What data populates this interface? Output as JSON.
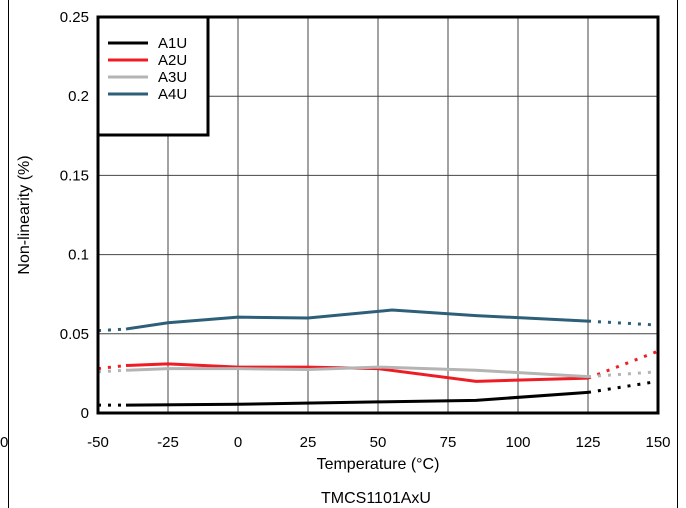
{
  "chart_data": {
    "type": "line",
    "title": "",
    "caption": "TMCS1101AxU",
    "xlabel": "Temperature (°C)",
    "ylabel": "Non-linearity (%)",
    "xlim": [
      -50,
      150
    ],
    "ylim": [
      0,
      0.25
    ],
    "x_ticks": [
      -50,
      -25,
      0,
      25,
      50,
      75,
      100,
      125,
      150
    ],
    "y_ticks": [
      0,
      0.05,
      0.1,
      0.15,
      0.2,
      0.25
    ],
    "x_tick_labels": [
      "-50",
      "-25",
      "0",
      "25",
      "50",
      "75",
      "100",
      "125",
      "150"
    ],
    "y_tick_labels": [
      "0",
      "0.05",
      "0.1",
      "0.15",
      "0.2",
      "0.25"
    ],
    "stray_label": "0",
    "grid": true,
    "legend_position": "top-left",
    "series": [
      {
        "name": "A1U",
        "color": "#000000",
        "solid": {
          "x": [
            -40,
            0,
            50,
            85,
            125
          ],
          "y": [
            0.005,
            0.0055,
            0.007,
            0.008,
            0.013
          ]
        },
        "dotted_start": {
          "x": [
            -50,
            -40
          ],
          "y": [
            0.005,
            0.005
          ]
        },
        "dotted_end": {
          "x": [
            125,
            150
          ],
          "y": [
            0.013,
            0.02
          ]
        }
      },
      {
        "name": "A2U",
        "color": "#ee1c25",
        "solid": {
          "x": [
            -40,
            -25,
            0,
            25,
            50,
            85,
            125
          ],
          "y": [
            0.03,
            0.031,
            0.029,
            0.029,
            0.028,
            0.02,
            0.022
          ]
        },
        "dotted_start": {
          "x": [
            -50,
            -40
          ],
          "y": [
            0.028,
            0.03
          ]
        },
        "dotted_end": {
          "x": [
            125,
            150
          ],
          "y": [
            0.022,
            0.039
          ]
        }
      },
      {
        "name": "A3U",
        "color": "#b4b4b4",
        "solid": {
          "x": [
            -40,
            -25,
            0,
            25,
            50,
            85,
            125
          ],
          "y": [
            0.027,
            0.028,
            0.028,
            0.0275,
            0.029,
            0.027,
            0.023
          ]
        },
        "dotted_start": {
          "x": [
            -50,
            -40
          ],
          "y": [
            0.026,
            0.027
          ]
        },
        "dotted_end": {
          "x": [
            125,
            150
          ],
          "y": [
            0.023,
            0.026
          ]
        }
      },
      {
        "name": "A4U",
        "color": "#2e5f78",
        "solid": {
          "x": [
            -40,
            -25,
            0,
            25,
            55,
            85,
            125
          ],
          "y": [
            0.053,
            0.057,
            0.0605,
            0.06,
            0.065,
            0.0615,
            0.058
          ]
        },
        "dotted_start": {
          "x": [
            -50,
            -40
          ],
          "y": [
            0.052,
            0.053
          ]
        },
        "dotted_end": {
          "x": [
            125,
            150
          ],
          "y": [
            0.058,
            0.0555
          ]
        }
      }
    ]
  }
}
